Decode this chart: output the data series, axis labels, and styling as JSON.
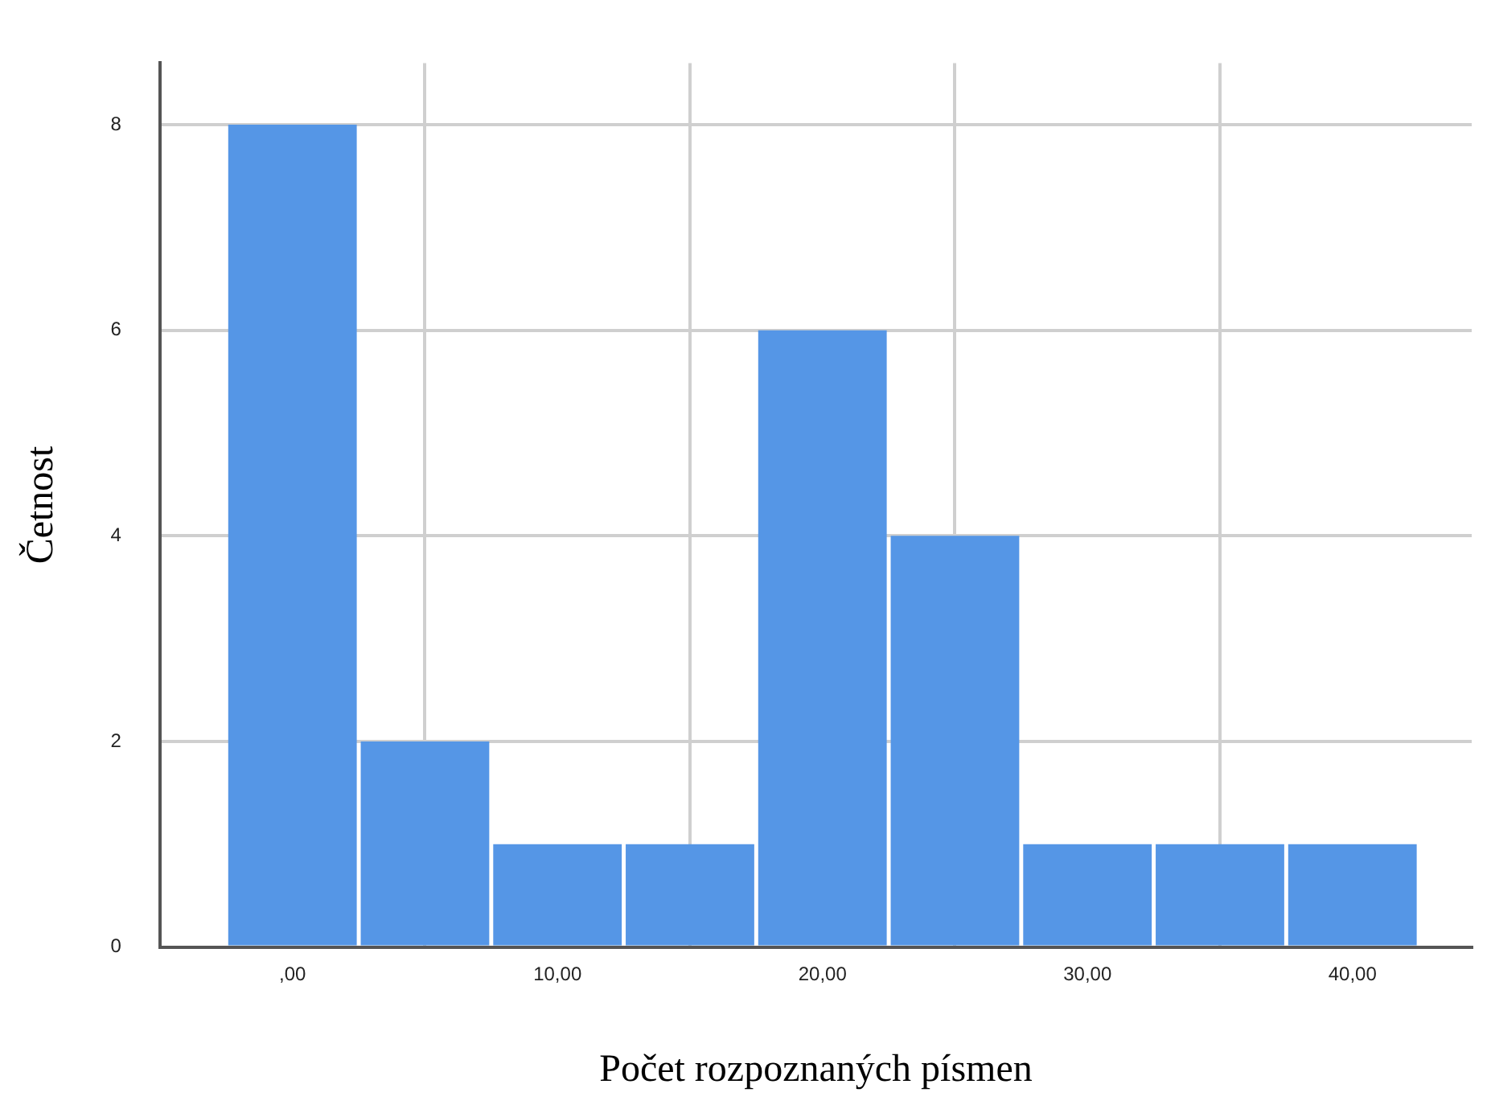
{
  "chart_data": {
    "type": "histogram",
    "xlabel": "Počet rozpoznaných písmen",
    "ylabel": "Četnost",
    "bins": [
      -2.5,
      2.5,
      7.5,
      12.5,
      17.5,
      22.5,
      27.5,
      32.5,
      37.5,
      42.5
    ],
    "values": [
      8,
      2,
      1,
      1,
      6,
      4,
      1,
      1,
      1
    ],
    "color": "#5596e6",
    "xlim": [
      -5,
      44.5
    ],
    "ylim": [
      0,
      8.6
    ],
    "xticks": [
      {
        "value": 0,
        "label": ",00"
      },
      {
        "value": 10,
        "label": "10,00"
      },
      {
        "value": 20,
        "label": "20,00"
      },
      {
        "value": 30,
        "label": "30,00"
      },
      {
        "value": 40,
        "label": "40,00"
      }
    ],
    "yticks": [
      0,
      2,
      4,
      6,
      8
    ],
    "grid": true
  }
}
